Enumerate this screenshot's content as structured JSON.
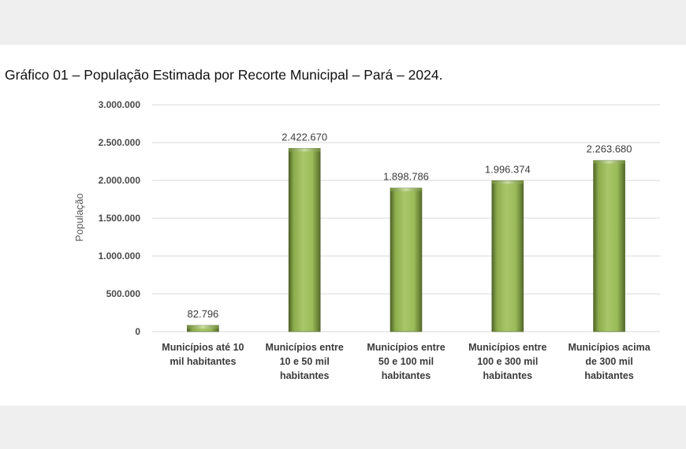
{
  "chart_data": {
    "type": "bar",
    "title": "Gráfico 01 – População Estimada por Recorte Municipal – Pará – 2024.",
    "ylabel": "População",
    "xlabel": "",
    "categories": [
      [
        "Municípios até 10",
        "mil habitantes"
      ],
      [
        "Municípios entre",
        "10 e 50 mil",
        "habitantes"
      ],
      [
        "Municípios entre",
        "50 e 100 mil",
        "habitantes"
      ],
      [
        "Municípios entre",
        "100 e 300 mil",
        "habitantes"
      ],
      [
        "Municípios acima",
        "de 300 mil",
        "habitantes"
      ]
    ],
    "values": [
      82796,
      2422670,
      1898786,
      1996374,
      2263680
    ],
    "data_labels": [
      "82.796",
      "2.422.670",
      "1.898.786",
      "1.996.374",
      "2.263.680"
    ],
    "y_ticks": [
      0,
      500000,
      1000000,
      1500000,
      2000000,
      2500000,
      3000000
    ],
    "y_tick_labels": [
      "0",
      "500.000",
      "1.000.000",
      "1.500.000",
      "2.000.000",
      "2.500.000",
      "3.000.000"
    ],
    "ylim": [
      0,
      3000000
    ],
    "grid": true,
    "legend": "none",
    "colors": {
      "bar": "#9bbb59",
      "bar_dark": "#4f6228",
      "bar_light": "#c3d69b",
      "grid": "#d9d9d9"
    }
  }
}
